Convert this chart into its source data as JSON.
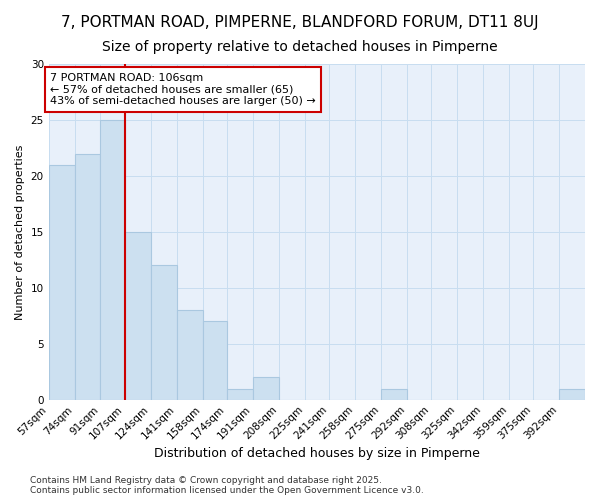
{
  "title": "7, PORTMAN ROAD, PIMPERNE, BLANDFORD FORUM, DT11 8UJ",
  "subtitle": "Size of property relative to detached houses in Pimperne",
  "xlabel": "Distribution of detached houses by size in Pimperne",
  "ylabel": "Number of detached properties",
  "bin_edges": [
    57,
    74,
    91,
    107,
    124,
    141,
    158,
    174,
    191,
    208,
    225,
    241,
    258,
    275,
    292,
    308,
    325,
    342,
    359,
    375,
    392,
    409
  ],
  "bar_heights": [
    21,
    22,
    25,
    15,
    12,
    8,
    7,
    1,
    2,
    0,
    0,
    0,
    0,
    1,
    0,
    0,
    0,
    0,
    0,
    0,
    1
  ],
  "bar_color": "#cce0f0",
  "bar_edgecolor": "#aac8e0",
  "bar_linewidth": 0.8,
  "red_line_x": 107,
  "annotation_text": "7 PORTMAN ROAD: 106sqm\n← 57% of detached houses are smaller (65)\n43% of semi-detached houses are larger (50) →",
  "annotation_box_color": "white",
  "annotation_box_edgecolor": "#cc0000",
  "annotation_fontsize": 8,
  "ylim": [
    0,
    30
  ],
  "yticks": [
    0,
    5,
    10,
    15,
    20,
    25,
    30
  ],
  "grid_color": "#c8ddf0",
  "grid_linewidth": 0.7,
  "plot_bg_color": "#e8f0fa",
  "fig_bg_color": "#ffffff",
  "footer_text": "Contains HM Land Registry data © Crown copyright and database right 2025.\nContains public sector information licensed under the Open Government Licence v3.0.",
  "title_fontsize": 11,
  "subtitle_fontsize": 10,
  "xlabel_fontsize": 9,
  "ylabel_fontsize": 8,
  "tick_fontsize": 7.5,
  "footer_fontsize": 6.5
}
